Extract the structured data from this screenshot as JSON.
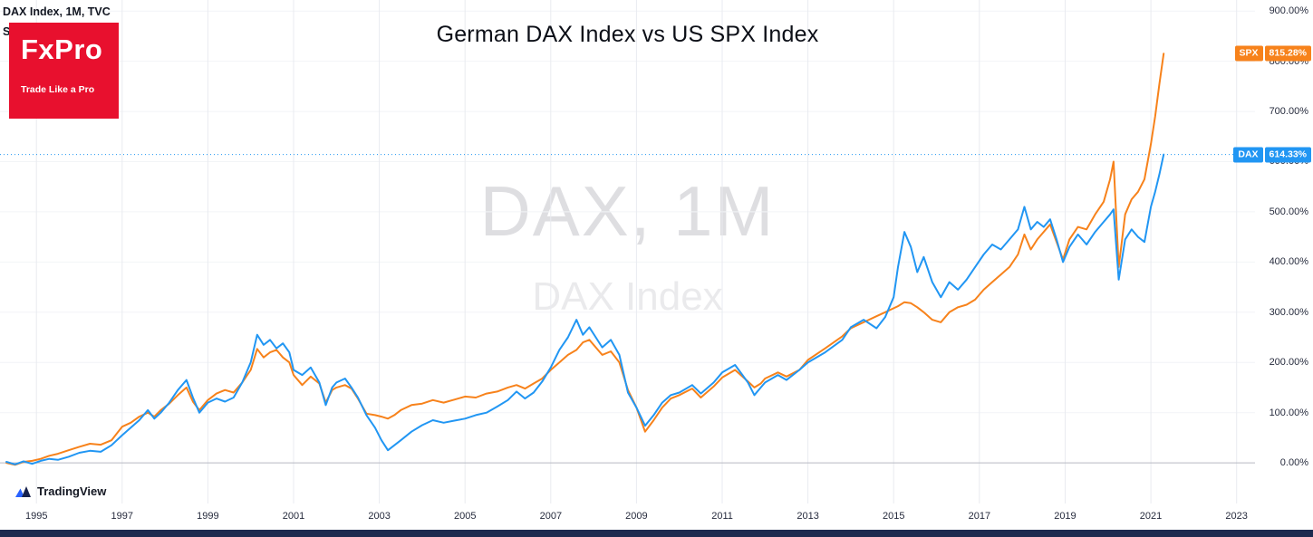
{
  "header": {
    "title": "German DAX Index vs US SPX Index",
    "legend_line1": "DAX Index, 1M, TVC",
    "legend_line2": "SPX, 1M, SP"
  },
  "logo": {
    "brand": "FxPro",
    "tagline": "Trade Like a Pro",
    "bg": "#e8102e"
  },
  "watermark": {
    "line1": "DAX, 1M",
    "line2": "DAX Index"
  },
  "attribution": {
    "label": "TradingView"
  },
  "colors": {
    "dax": "#2196f3",
    "spx": "#f7821b",
    "grid_h": "#f2f4f7",
    "grid_v": "#e9ebf0",
    "zero_line": "#b6b9c2",
    "axis_text": "#262b3d",
    "bottom_bar": "#1d2a4f"
  },
  "chart_data": {
    "type": "line",
    "title": "German DAX Index vs US SPX Index",
    "xlabel": "",
    "ylabel": "",
    "x_unit": "year",
    "y_unit": "percent change",
    "grid": true,
    "legend_position": "none",
    "xlim": [
      1994.15,
      2023.43
    ],
    "ylim": [
      -81,
      922
    ],
    "x_ticks": [
      1995,
      1997,
      1999,
      2001,
      2003,
      2005,
      2007,
      2009,
      2011,
      2013,
      2015,
      2017,
      2019,
      2021,
      2023
    ],
    "y_ticks": [
      {
        "value": 0,
        "label": "0.00%"
      },
      {
        "value": 100,
        "label": "100.00%"
      },
      {
        "value": 200,
        "label": "200.00%"
      },
      {
        "value": 300,
        "label": "300.00%"
      },
      {
        "value": 400,
        "label": "400.00%"
      },
      {
        "value": 500,
        "label": "500.00%"
      },
      {
        "value": 600,
        "label": "600.00%"
      },
      {
        "value": 700,
        "label": "700.00%"
      },
      {
        "value": 800,
        "label": "800.00%"
      },
      {
        "value": 900,
        "label": "900.00%"
      }
    ],
    "price_line": {
      "series": "DAX",
      "value": 614.33,
      "style": "dotted"
    },
    "series": [
      {
        "name": "SPX",
        "color": "#f7821b",
        "last_value": 815.28,
        "last_label": "815.28%",
        "points": [
          [
            1994.3,
            0
          ],
          [
            1994.5,
            -4
          ],
          [
            1994.7,
            2
          ],
          [
            1994.9,
            4
          ],
          [
            1995.1,
            8
          ],
          [
            1995.3,
            14
          ],
          [
            1995.5,
            18
          ],
          [
            1995.75,
            25
          ],
          [
            1996.0,
            32
          ],
          [
            1996.25,
            38
          ],
          [
            1996.5,
            36
          ],
          [
            1996.75,
            45
          ],
          [
            1997.0,
            72
          ],
          [
            1997.2,
            80
          ],
          [
            1997.4,
            92
          ],
          [
            1997.6,
            100
          ],
          [
            1997.75,
            92
          ],
          [
            1997.9,
            105
          ],
          [
            1998.1,
            118
          ],
          [
            1998.3,
            135
          ],
          [
            1998.5,
            150
          ],
          [
            1998.65,
            122
          ],
          [
            1998.8,
            105
          ],
          [
            1999.0,
            125
          ],
          [
            1999.2,
            138
          ],
          [
            1999.4,
            145
          ],
          [
            1999.6,
            140
          ],
          [
            1999.8,
            160
          ],
          [
            2000.0,
            185
          ],
          [
            2000.15,
            227
          ],
          [
            2000.3,
            210
          ],
          [
            2000.45,
            220
          ],
          [
            2000.6,
            225
          ],
          [
            2000.75,
            210
          ],
          [
            2000.9,
            200
          ],
          [
            2001.0,
            175
          ],
          [
            2001.2,
            155
          ],
          [
            2001.4,
            172
          ],
          [
            2001.6,
            158
          ],
          [
            2001.75,
            120
          ],
          [
            2001.9,
            145
          ],
          [
            2002.0,
            150
          ],
          [
            2002.2,
            155
          ],
          [
            2002.35,
            148
          ],
          [
            2002.5,
            128
          ],
          [
            2002.7,
            98
          ],
          [
            2002.9,
            95
          ],
          [
            2003.05,
            92
          ],
          [
            2003.2,
            88
          ],
          [
            2003.35,
            95
          ],
          [
            2003.5,
            105
          ],
          [
            2003.75,
            115
          ],
          [
            2004.0,
            118
          ],
          [
            2004.25,
            125
          ],
          [
            2004.5,
            120
          ],
          [
            2004.75,
            126
          ],
          [
            2005.0,
            132
          ],
          [
            2005.25,
            130
          ],
          [
            2005.5,
            138
          ],
          [
            2005.75,
            142
          ],
          [
            2006.0,
            150
          ],
          [
            2006.2,
            155
          ],
          [
            2006.4,
            148
          ],
          [
            2006.6,
            158
          ],
          [
            2006.8,
            168
          ],
          [
            2007.0,
            185
          ],
          [
            2007.2,
            200
          ],
          [
            2007.4,
            215
          ],
          [
            2007.6,
            225
          ],
          [
            2007.75,
            240
          ],
          [
            2007.9,
            245
          ],
          [
            2008.05,
            230
          ],
          [
            2008.2,
            215
          ],
          [
            2008.4,
            222
          ],
          [
            2008.6,
            200
          ],
          [
            2008.8,
            145
          ],
          [
            2009.0,
            110
          ],
          [
            2009.2,
            62
          ],
          [
            2009.4,
            85
          ],
          [
            2009.6,
            110
          ],
          [
            2009.8,
            128
          ],
          [
            2010.0,
            135
          ],
          [
            2010.3,
            148
          ],
          [
            2010.5,
            130
          ],
          [
            2010.8,
            152
          ],
          [
            2011.0,
            170
          ],
          [
            2011.3,
            185
          ],
          [
            2011.6,
            162
          ],
          [
            2011.75,
            150
          ],
          [
            2011.9,
            158
          ],
          [
            2012.0,
            168
          ],
          [
            2012.3,
            180
          ],
          [
            2012.5,
            172
          ],
          [
            2012.8,
            185
          ],
          [
            2013.0,
            205
          ],
          [
            2013.4,
            228
          ],
          [
            2013.8,
            252
          ],
          [
            2014.0,
            268
          ],
          [
            2014.3,
            280
          ],
          [
            2014.6,
            292
          ],
          [
            2014.8,
            300
          ],
          [
            2015.0,
            308
          ],
          [
            2015.1,
            312
          ],
          [
            2015.25,
            320
          ],
          [
            2015.4,
            318
          ],
          [
            2015.55,
            310
          ],
          [
            2015.7,
            300
          ],
          [
            2015.9,
            285
          ],
          [
            2016.1,
            280
          ],
          [
            2016.3,
            300
          ],
          [
            2016.5,
            310
          ],
          [
            2016.7,
            315
          ],
          [
            2016.9,
            325
          ],
          [
            2017.1,
            345
          ],
          [
            2017.3,
            360
          ],
          [
            2017.5,
            375
          ],
          [
            2017.7,
            390
          ],
          [
            2017.9,
            415
          ],
          [
            2018.05,
            455
          ],
          [
            2018.2,
            425
          ],
          [
            2018.35,
            445
          ],
          [
            2018.5,
            460
          ],
          [
            2018.65,
            475
          ],
          [
            2018.8,
            440
          ],
          [
            2018.95,
            405
          ],
          [
            2019.1,
            445
          ],
          [
            2019.3,
            470
          ],
          [
            2019.5,
            465
          ],
          [
            2019.7,
            495
          ],
          [
            2019.9,
            520
          ],
          [
            2020.05,
            565
          ],
          [
            2020.13,
            600
          ],
          [
            2020.25,
            390
          ],
          [
            2020.4,
            495
          ],
          [
            2020.55,
            525
          ],
          [
            2020.7,
            540
          ],
          [
            2020.85,
            565
          ],
          [
            2021.0,
            635
          ],
          [
            2021.1,
            690
          ],
          [
            2021.2,
            755
          ],
          [
            2021.3,
            815.28
          ]
        ]
      },
      {
        "name": "DAX",
        "color": "#2196f3",
        "last_value": 614.33,
        "last_label": "614.33%",
        "points": [
          [
            1994.3,
            2
          ],
          [
            1994.5,
            -3
          ],
          [
            1994.7,
            3
          ],
          [
            1994.9,
            -2
          ],
          [
            1995.1,
            4
          ],
          [
            1995.3,
            8
          ],
          [
            1995.5,
            6
          ],
          [
            1995.75,
            12
          ],
          [
            1996.0,
            20
          ],
          [
            1996.25,
            24
          ],
          [
            1996.5,
            22
          ],
          [
            1996.75,
            35
          ],
          [
            1997.0,
            55
          ],
          [
            1997.2,
            70
          ],
          [
            1997.4,
            85
          ],
          [
            1997.6,
            105
          ],
          [
            1997.75,
            88
          ],
          [
            1997.9,
            100
          ],
          [
            1998.1,
            120
          ],
          [
            1998.3,
            145
          ],
          [
            1998.5,
            165
          ],
          [
            1998.65,
            130
          ],
          [
            1998.8,
            100
          ],
          [
            1999.0,
            120
          ],
          [
            1999.2,
            128
          ],
          [
            1999.4,
            122
          ],
          [
            1999.6,
            130
          ],
          [
            1999.8,
            160
          ],
          [
            2000.0,
            200
          ],
          [
            2000.15,
            255
          ],
          [
            2000.3,
            235
          ],
          [
            2000.45,
            245
          ],
          [
            2000.6,
            228
          ],
          [
            2000.75,
            238
          ],
          [
            2000.9,
            220
          ],
          [
            2001.0,
            185
          ],
          [
            2001.2,
            175
          ],
          [
            2001.4,
            190
          ],
          [
            2001.6,
            160
          ],
          [
            2001.75,
            115
          ],
          [
            2001.9,
            150
          ],
          [
            2002.0,
            160
          ],
          [
            2002.2,
            168
          ],
          [
            2002.35,
            150
          ],
          [
            2002.5,
            130
          ],
          [
            2002.7,
            95
          ],
          [
            2002.9,
            70
          ],
          [
            2003.05,
            45
          ],
          [
            2003.2,
            25
          ],
          [
            2003.35,
            35
          ],
          [
            2003.5,
            45
          ],
          [
            2003.75,
            62
          ],
          [
            2004.0,
            75
          ],
          [
            2004.25,
            85
          ],
          [
            2004.5,
            80
          ],
          [
            2004.75,
            84
          ],
          [
            2005.0,
            88
          ],
          [
            2005.25,
            95
          ],
          [
            2005.5,
            100
          ],
          [
            2005.75,
            112
          ],
          [
            2006.0,
            125
          ],
          [
            2006.2,
            142
          ],
          [
            2006.4,
            128
          ],
          [
            2006.6,
            140
          ],
          [
            2006.8,
            162
          ],
          [
            2007.0,
            190
          ],
          [
            2007.2,
            225
          ],
          [
            2007.4,
            250
          ],
          [
            2007.6,
            285
          ],
          [
            2007.75,
            255
          ],
          [
            2007.9,
            270
          ],
          [
            2008.05,
            250
          ],
          [
            2008.2,
            230
          ],
          [
            2008.4,
            245
          ],
          [
            2008.6,
            215
          ],
          [
            2008.8,
            140
          ],
          [
            2009.0,
            110
          ],
          [
            2009.2,
            74
          ],
          [
            2009.4,
            95
          ],
          [
            2009.6,
            120
          ],
          [
            2009.8,
            135
          ],
          [
            2010.0,
            140
          ],
          [
            2010.3,
            155
          ],
          [
            2010.5,
            138
          ],
          [
            2010.8,
            160
          ],
          [
            2011.0,
            180
          ],
          [
            2011.3,
            195
          ],
          [
            2011.6,
            160
          ],
          [
            2011.75,
            135
          ],
          [
            2011.9,
            150
          ],
          [
            2012.0,
            160
          ],
          [
            2012.3,
            175
          ],
          [
            2012.5,
            165
          ],
          [
            2012.8,
            185
          ],
          [
            2013.0,
            200
          ],
          [
            2013.4,
            220
          ],
          [
            2013.8,
            245
          ],
          [
            2014.0,
            270
          ],
          [
            2014.3,
            285
          ],
          [
            2014.6,
            268
          ],
          [
            2014.8,
            290
          ],
          [
            2015.0,
            330
          ],
          [
            2015.1,
            390
          ],
          [
            2015.25,
            460
          ],
          [
            2015.4,
            430
          ],
          [
            2015.55,
            380
          ],
          [
            2015.7,
            410
          ],
          [
            2015.9,
            360
          ],
          [
            2016.1,
            330
          ],
          [
            2016.3,
            360
          ],
          [
            2016.5,
            345
          ],
          [
            2016.7,
            365
          ],
          [
            2016.9,
            390
          ],
          [
            2017.1,
            415
          ],
          [
            2017.3,
            435
          ],
          [
            2017.5,
            425
          ],
          [
            2017.7,
            445
          ],
          [
            2017.9,
            465
          ],
          [
            2018.05,
            510
          ],
          [
            2018.2,
            465
          ],
          [
            2018.35,
            480
          ],
          [
            2018.5,
            470
          ],
          [
            2018.65,
            485
          ],
          [
            2018.8,
            445
          ],
          [
            2018.95,
            400
          ],
          [
            2019.1,
            430
          ],
          [
            2019.3,
            455
          ],
          [
            2019.5,
            435
          ],
          [
            2019.7,
            460
          ],
          [
            2019.9,
            480
          ],
          [
            2020.05,
            495
          ],
          [
            2020.13,
            505
          ],
          [
            2020.25,
            365
          ],
          [
            2020.4,
            445
          ],
          [
            2020.55,
            465
          ],
          [
            2020.7,
            450
          ],
          [
            2020.85,
            440
          ],
          [
            2021.0,
            510
          ],
          [
            2021.1,
            540
          ],
          [
            2021.2,
            575
          ],
          [
            2021.3,
            614.33
          ]
        ]
      }
    ]
  }
}
